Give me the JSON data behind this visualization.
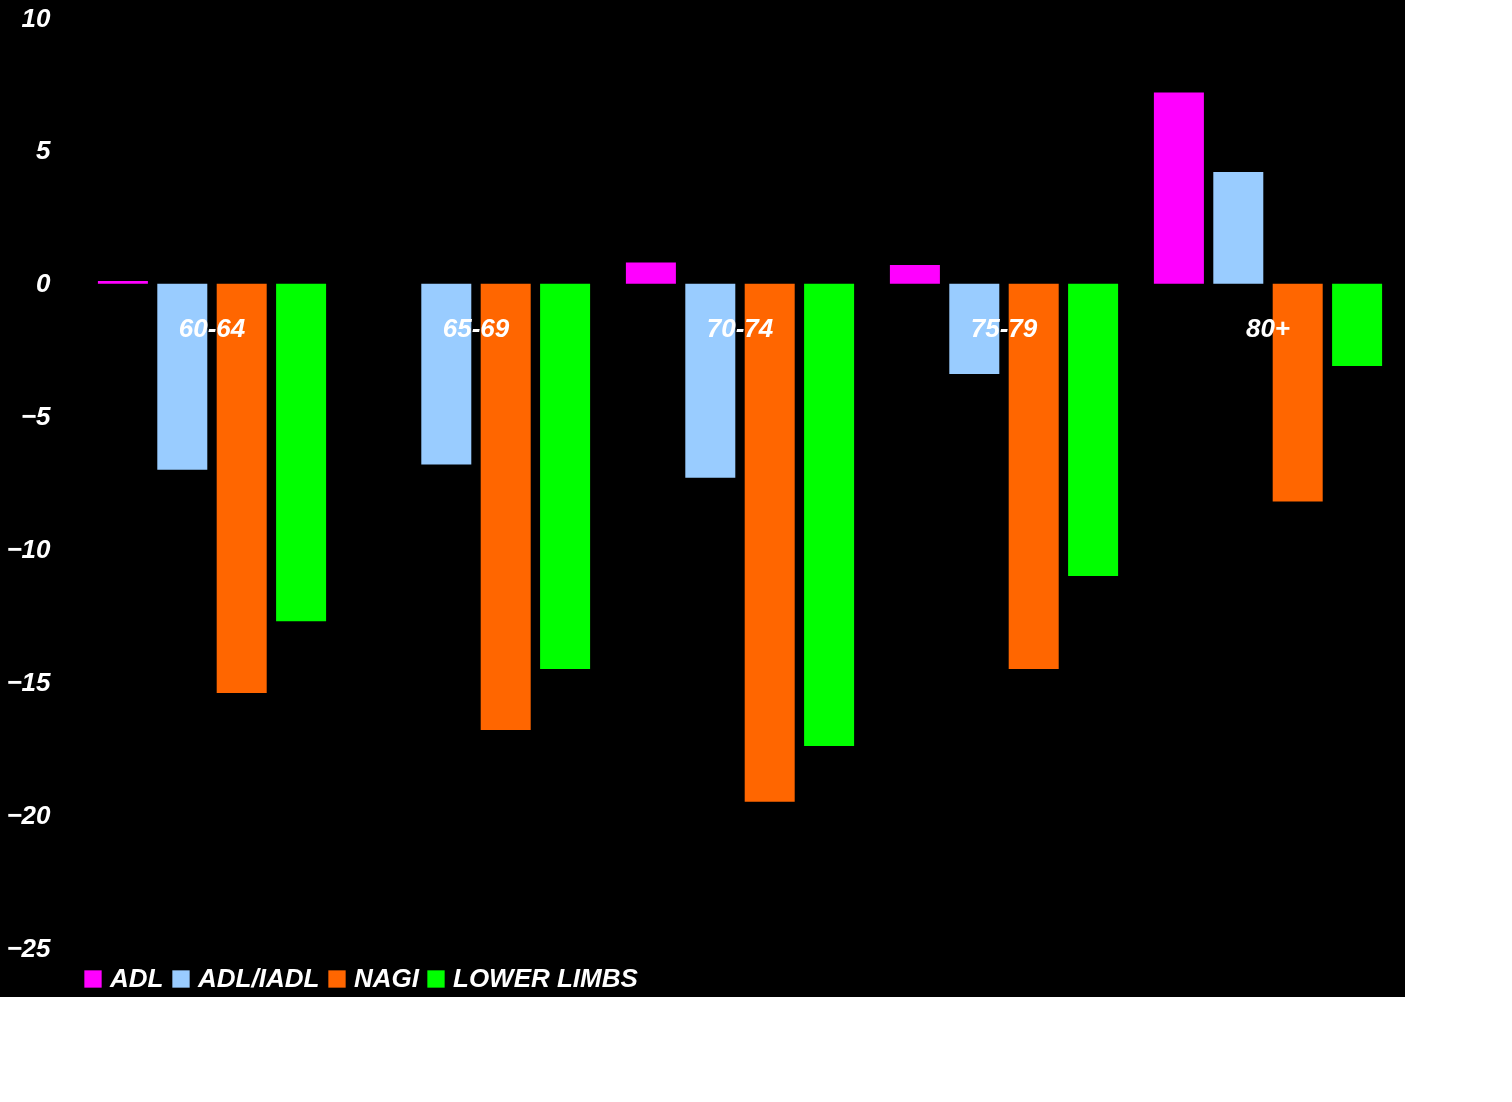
{
  "chart_data": {
    "type": "bar",
    "categories": [
      "60-64",
      "65-69",
      "70-74",
      "75-79",
      "80+"
    ],
    "series": [
      {
        "name": "ADL",
        "color": "#ff00ff",
        "values": [
          0.1,
          null,
          0.8,
          0.7,
          7.2
        ]
      },
      {
        "name": "ADL/IADL",
        "color": "#99ccff",
        "values": [
          -7.0,
          -6.8,
          -7.3,
          -3.4,
          4.2
        ]
      },
      {
        "name": "NAGI",
        "color": "#ff6600",
        "values": [
          -15.4,
          -16.8,
          -19.5,
          -14.5,
          -8.2
        ]
      },
      {
        "name": "LOWER LIMBS",
        "color": "#00ff00",
        "values": [
          -12.7,
          -14.5,
          -17.4,
          -11.0,
          -3.1
        ]
      }
    ],
    "ylim": [
      -25,
      10
    ],
    "yticks": [
      -25,
      -20,
      -15,
      -10,
      -5,
      0,
      5,
      10
    ],
    "grid": false,
    "legend": "bottom"
  }
}
